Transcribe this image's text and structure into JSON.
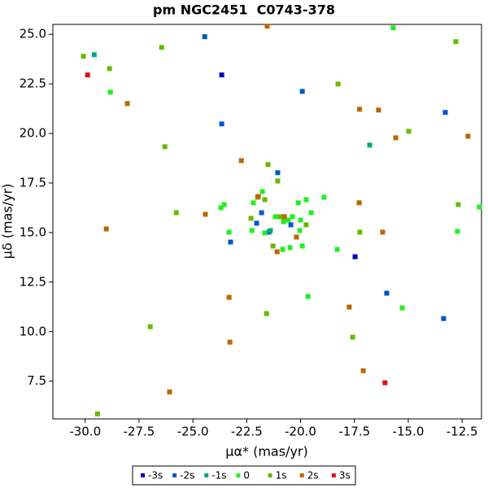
{
  "chart_data": {
    "type": "scatter",
    "title": "pm NGC2451  C0743-378",
    "x_label": "μα* (mas/yr)",
    "y_label": "μδ (mas/yr)",
    "xlim": [
      -31.5,
      -11.6
    ],
    "ylim": [
      5.6,
      25.5
    ],
    "xticks": [
      {
        "value": -30,
        "label": "-30.0"
      },
      -27.5,
      {
        "value": -25,
        "label": "-25.0"
      },
      -22.5,
      {
        "value": -20,
        "label": "-20.0"
      },
      -17.5,
      {
        "value": -15,
        "label": "-15.0"
      },
      -12.5
    ],
    "yticks": [
      7.5,
      {
        "value": 10,
        "label": "10.0"
      },
      12.5,
      {
        "value": 15,
        "label": "15.0"
      },
      17.5,
      {
        "value": 20,
        "label": "20.0"
      },
      22.5,
      {
        "value": 25,
        "label": "25.0"
      }
    ],
    "legend": "bottom",
    "series": [
      {
        "name": "-3s",
        "color": "#0000bb",
        "x": [
          -23.66,
          -17.47
        ],
        "y": [
          22.95,
          13.78
        ]
      },
      {
        "name": "-2s",
        "color": "#0055cc",
        "x": [
          -24.45,
          -23.66,
          -19.92,
          -13.28,
          -21.06,
          -21.81,
          -22.04,
          -20.45,
          -21.47,
          -23.25,
          -16.0,
          -13.36
        ],
        "y": [
          24.88,
          20.48,
          22.12,
          21.06,
          18.02,
          16.0,
          15.47,
          15.39,
          15.02,
          14.52,
          11.94,
          10.66
        ]
      },
      {
        "name": "-1s",
        "color": "#00aa77",
        "x": [
          -29.58,
          -16.79,
          -21.4
        ],
        "y": [
          23.97,
          19.41,
          15.1
        ]
      },
      {
        "name": "0",
        "color": "#22ee22",
        "x": [
          -28.83,
          -15.7,
          -21.77,
          -22.19,
          -23.55,
          -23.7,
          -21.17,
          -20.57,
          -20.38,
          -20.79,
          -20.11,
          -19.74,
          -18.91,
          -19.51,
          -20.0,
          -20.04,
          -21.66,
          -22.26,
          -23.32,
          -20.83,
          -20.49,
          -19.92,
          -18.3,
          -11.7,
          -12.72,
          -19.66,
          -15.28
        ],
        "y": [
          22.08,
          25.33,
          17.07,
          16.5,
          16.41,
          16.25,
          15.8,
          15.63,
          15.8,
          15.55,
          16.5,
          16.66,
          16.78,
          16.0,
          15.63,
          15.1,
          14.98,
          15.1,
          15.02,
          14.15,
          14.24,
          14.32,
          14.15,
          16.29,
          15.06,
          11.77,
          11.2
        ]
      },
      {
        "name": "1s",
        "color": "#66bb00",
        "x": [
          -30.08,
          -28.87,
          -26.45,
          -26.3,
          -18.26,
          -14.98,
          -12.79,
          -21.51,
          -21.06,
          -22.0,
          -21.66,
          -25.77,
          -22.3,
          -20.94,
          -19.74,
          -21.28,
          -17.25,
          -12.68,
          -21.58,
          -26.98,
          -17.58,
          -29.43
        ],
        "y": [
          23.89,
          23.27,
          24.34,
          19.33,
          22.49,
          20.11,
          24.63,
          18.43,
          17.6,
          16.78,
          16.66,
          16.0,
          15.72,
          15.8,
          15.39,
          14.32,
          15.02,
          16.41,
          10.91,
          10.25,
          9.72,
          5.85
        ]
      },
      {
        "name": "2s",
        "color": "#bb6600",
        "x": [
          -28.04,
          -21.55,
          -17.26,
          -16.38,
          -15.58,
          -12.23,
          -22.75,
          -21.96,
          -24.42,
          -20.75,
          -21.09,
          -20.19,
          -17.28,
          -16.19,
          -29.02,
          -23.32,
          -17.74,
          -23.28,
          -17.09,
          -26.08
        ],
        "y": [
          21.51,
          25.41,
          21.22,
          21.18,
          19.78,
          19.86,
          18.63,
          16.82,
          15.92,
          15.8,
          14.03,
          14.77,
          16.5,
          15.02,
          15.18,
          11.73,
          11.24,
          9.47,
          8.03,
          6.96
        ]
      },
      {
        "name": "3s",
        "color": "#dd1111",
        "x": [
          -29.89,
          -16.08
        ],
        "y": [
          22.95,
          7.42
        ]
      }
    ]
  }
}
